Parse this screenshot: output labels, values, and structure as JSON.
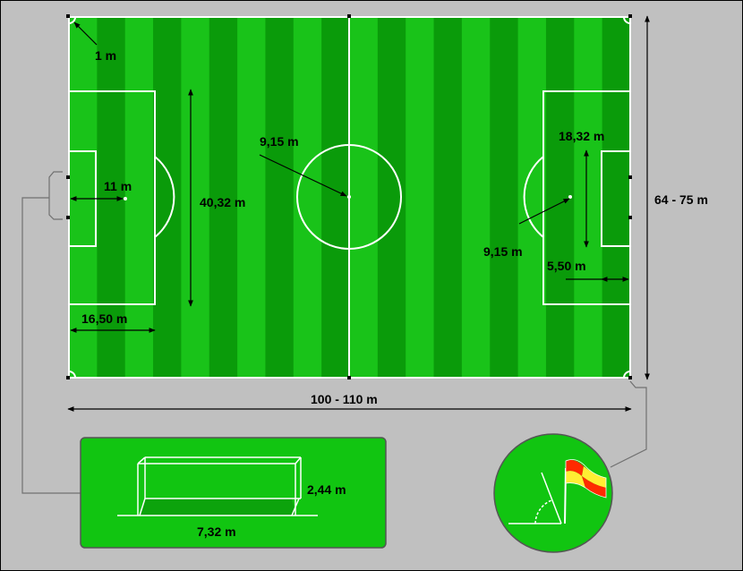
{
  "labels": {
    "corner_radius": "1 m",
    "penalty_spot": "11 m",
    "penalty_area_width": "40,32 m",
    "penalty_area_depth": "16,50 m",
    "center_circle": "9,15 m",
    "penalty_arc": "9,15 m",
    "goal_area_width": "18,32 m",
    "goal_area_depth": "5,50 m",
    "field_width": "64 - 75 m",
    "field_length": "100 - 110 m",
    "goal_height": "2,44 m",
    "goal_width": "7,32 m"
  },
  "colors": {
    "background": "#c0c0c0",
    "grass_light": "#19c319",
    "grass_dark": "#0a9b0a",
    "inset_green": "#11c511",
    "lines": "#ffffff",
    "flag_red": "#ff2a00",
    "flag_yellow": "#ffee33",
    "connector": "#707070"
  }
}
